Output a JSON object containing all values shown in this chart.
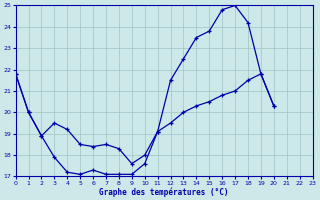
{
  "title": "Graphe des températures (°C)",
  "bg": "#cde8e8",
  "grid_color": "#a0c4c4",
  "lc": "#0000aa",
  "xlim": [
    0,
    23
  ],
  "ylim": [
    17,
    25
  ],
  "x_ticks": [
    0,
    1,
    2,
    3,
    4,
    5,
    6,
    7,
    8,
    9,
    10,
    11,
    12,
    13,
    14,
    15,
    16,
    17,
    18,
    19,
    20,
    21,
    22,
    23
  ],
  "y_ticks": [
    17,
    18,
    19,
    20,
    21,
    22,
    23,
    24,
    25
  ],
  "line1_x": [
    0,
    1,
    2,
    3,
    4,
    5,
    6,
    7,
    8,
    9,
    10,
    11,
    12,
    13,
    14,
    15,
    16,
    17,
    18,
    19,
    20
  ],
  "line1_y": [
    21.8,
    20.0,
    18.9,
    17.9,
    17.2,
    17.1,
    17.3,
    17.1,
    17.1,
    17.1,
    17.6,
    19.1,
    21.5,
    22.5,
    23.5,
    23.8,
    24.8,
    25.0,
    24.2,
    21.8,
    20.3
  ],
  "line2_x": [
    0,
    1,
    2,
    3,
    4,
    5,
    6,
    7,
    8,
    9,
    10,
    11,
    12,
    13,
    14,
    15,
    16,
    17,
    18,
    19,
    20
  ],
  "line2_y": [
    21.8,
    20.0,
    18.9,
    19.5,
    19.2,
    18.5,
    18.4,
    18.5,
    18.3,
    17.6,
    18.0,
    19.1,
    19.5,
    20.0,
    20.3,
    20.5,
    20.8,
    21.0,
    21.5,
    21.8,
    20.3
  ]
}
